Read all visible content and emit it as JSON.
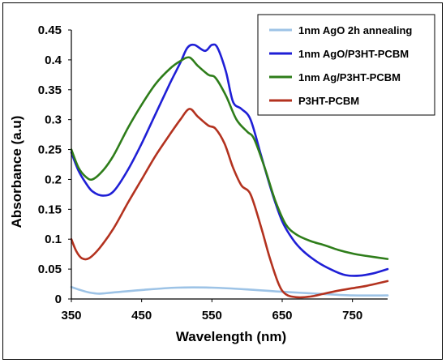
{
  "chart_data": {
    "type": "line",
    "xlabel": "Wavelength (nm)",
    "ylabel": "Absorbance (a.u)",
    "xlim": [
      350,
      800
    ],
    "ylim": [
      0,
      0.45
    ],
    "x_ticks": [
      "350",
      "450",
      "550",
      "650",
      "750"
    ],
    "y_ticks": [
      "0",
      "0.05",
      "0.1",
      "0.15",
      "0.2",
      "0.25",
      "0.3",
      "0.35",
      "0.4",
      "0.45"
    ],
    "legend_placement": "top-right",
    "grid": false,
    "series": [
      {
        "name": "1nm AgO 2h annealing",
        "color": "#9dc3e6",
        "points": [
          [
            350,
            0.02
          ],
          [
            360,
            0.016
          ],
          [
            375,
            0.011
          ],
          [
            390,
            0.009
          ],
          [
            410,
            0.011
          ],
          [
            450,
            0.015
          ],
          [
            500,
            0.019
          ],
          [
            550,
            0.019
          ],
          [
            600,
            0.016
          ],
          [
            650,
            0.012
          ],
          [
            700,
            0.009
          ],
          [
            750,
            0.006
          ],
          [
            800,
            0.006
          ]
        ]
      },
      {
        "name": "1nm AgO/P3HT-PCBM",
        "color": "#1f1fd6",
        "points": [
          [
            350,
            0.245
          ],
          [
            360,
            0.215
          ],
          [
            370,
            0.195
          ],
          [
            380,
            0.18
          ],
          [
            395,
            0.173
          ],
          [
            410,
            0.18
          ],
          [
            430,
            0.215
          ],
          [
            450,
            0.26
          ],
          [
            470,
            0.31
          ],
          [
            490,
            0.36
          ],
          [
            505,
            0.395
          ],
          [
            515,
            0.42
          ],
          [
            525,
            0.425
          ],
          [
            540,
            0.415
          ],
          [
            550,
            0.425
          ],
          [
            558,
            0.42
          ],
          [
            570,
            0.38
          ],
          [
            580,
            0.33
          ],
          [
            592,
            0.318
          ],
          [
            605,
            0.3
          ],
          [
            620,
            0.24
          ],
          [
            635,
            0.18
          ],
          [
            650,
            0.13
          ],
          [
            665,
            0.1
          ],
          [
            680,
            0.08
          ],
          [
            700,
            0.062
          ],
          [
            720,
            0.049
          ],
          [
            740,
            0.04
          ],
          [
            760,
            0.039
          ],
          [
            780,
            0.043
          ],
          [
            800,
            0.05
          ]
        ]
      },
      {
        "name": "1nm Ag/P3HT-PCBM",
        "color": "#2e7d1a",
        "points": [
          [
            350,
            0.25
          ],
          [
            360,
            0.22
          ],
          [
            370,
            0.205
          ],
          [
            380,
            0.2
          ],
          [
            395,
            0.215
          ],
          [
            410,
            0.24
          ],
          [
            430,
            0.285
          ],
          [
            450,
            0.325
          ],
          [
            470,
            0.36
          ],
          [
            490,
            0.385
          ],
          [
            505,
            0.398
          ],
          [
            518,
            0.404
          ],
          [
            530,
            0.39
          ],
          [
            545,
            0.375
          ],
          [
            555,
            0.37
          ],
          [
            570,
            0.34
          ],
          [
            585,
            0.3
          ],
          [
            600,
            0.28
          ],
          [
            610,
            0.268
          ],
          [
            625,
            0.22
          ],
          [
            640,
            0.165
          ],
          [
            655,
            0.125
          ],
          [
            670,
            0.108
          ],
          [
            690,
            0.097
          ],
          [
            710,
            0.09
          ],
          [
            730,
            0.082
          ],
          [
            750,
            0.076
          ],
          [
            770,
            0.072
          ],
          [
            800,
            0.067
          ]
        ]
      },
      {
        "name": "P3HT-PCBM",
        "color": "#b3321f",
        "points": [
          [
            350,
            0.1
          ],
          [
            357,
            0.08
          ],
          [
            365,
            0.068
          ],
          [
            375,
            0.068
          ],
          [
            390,
            0.085
          ],
          [
            410,
            0.118
          ],
          [
            430,
            0.16
          ],
          [
            450,
            0.2
          ],
          [
            470,
            0.24
          ],
          [
            490,
            0.275
          ],
          [
            505,
            0.3
          ],
          [
            518,
            0.318
          ],
          [
            530,
            0.305
          ],
          [
            545,
            0.29
          ],
          [
            555,
            0.285
          ],
          [
            568,
            0.26
          ],
          [
            580,
            0.22
          ],
          [
            592,
            0.19
          ],
          [
            605,
            0.175
          ],
          [
            620,
            0.12
          ],
          [
            632,
            0.07
          ],
          [
            645,
            0.025
          ],
          [
            655,
            0.008
          ],
          [
            670,
            0.003
          ],
          [
            690,
            0.004
          ],
          [
            710,
            0.009
          ],
          [
            730,
            0.014
          ],
          [
            750,
            0.018
          ],
          [
            770,
            0.022
          ],
          [
            800,
            0.03
          ]
        ]
      }
    ]
  }
}
